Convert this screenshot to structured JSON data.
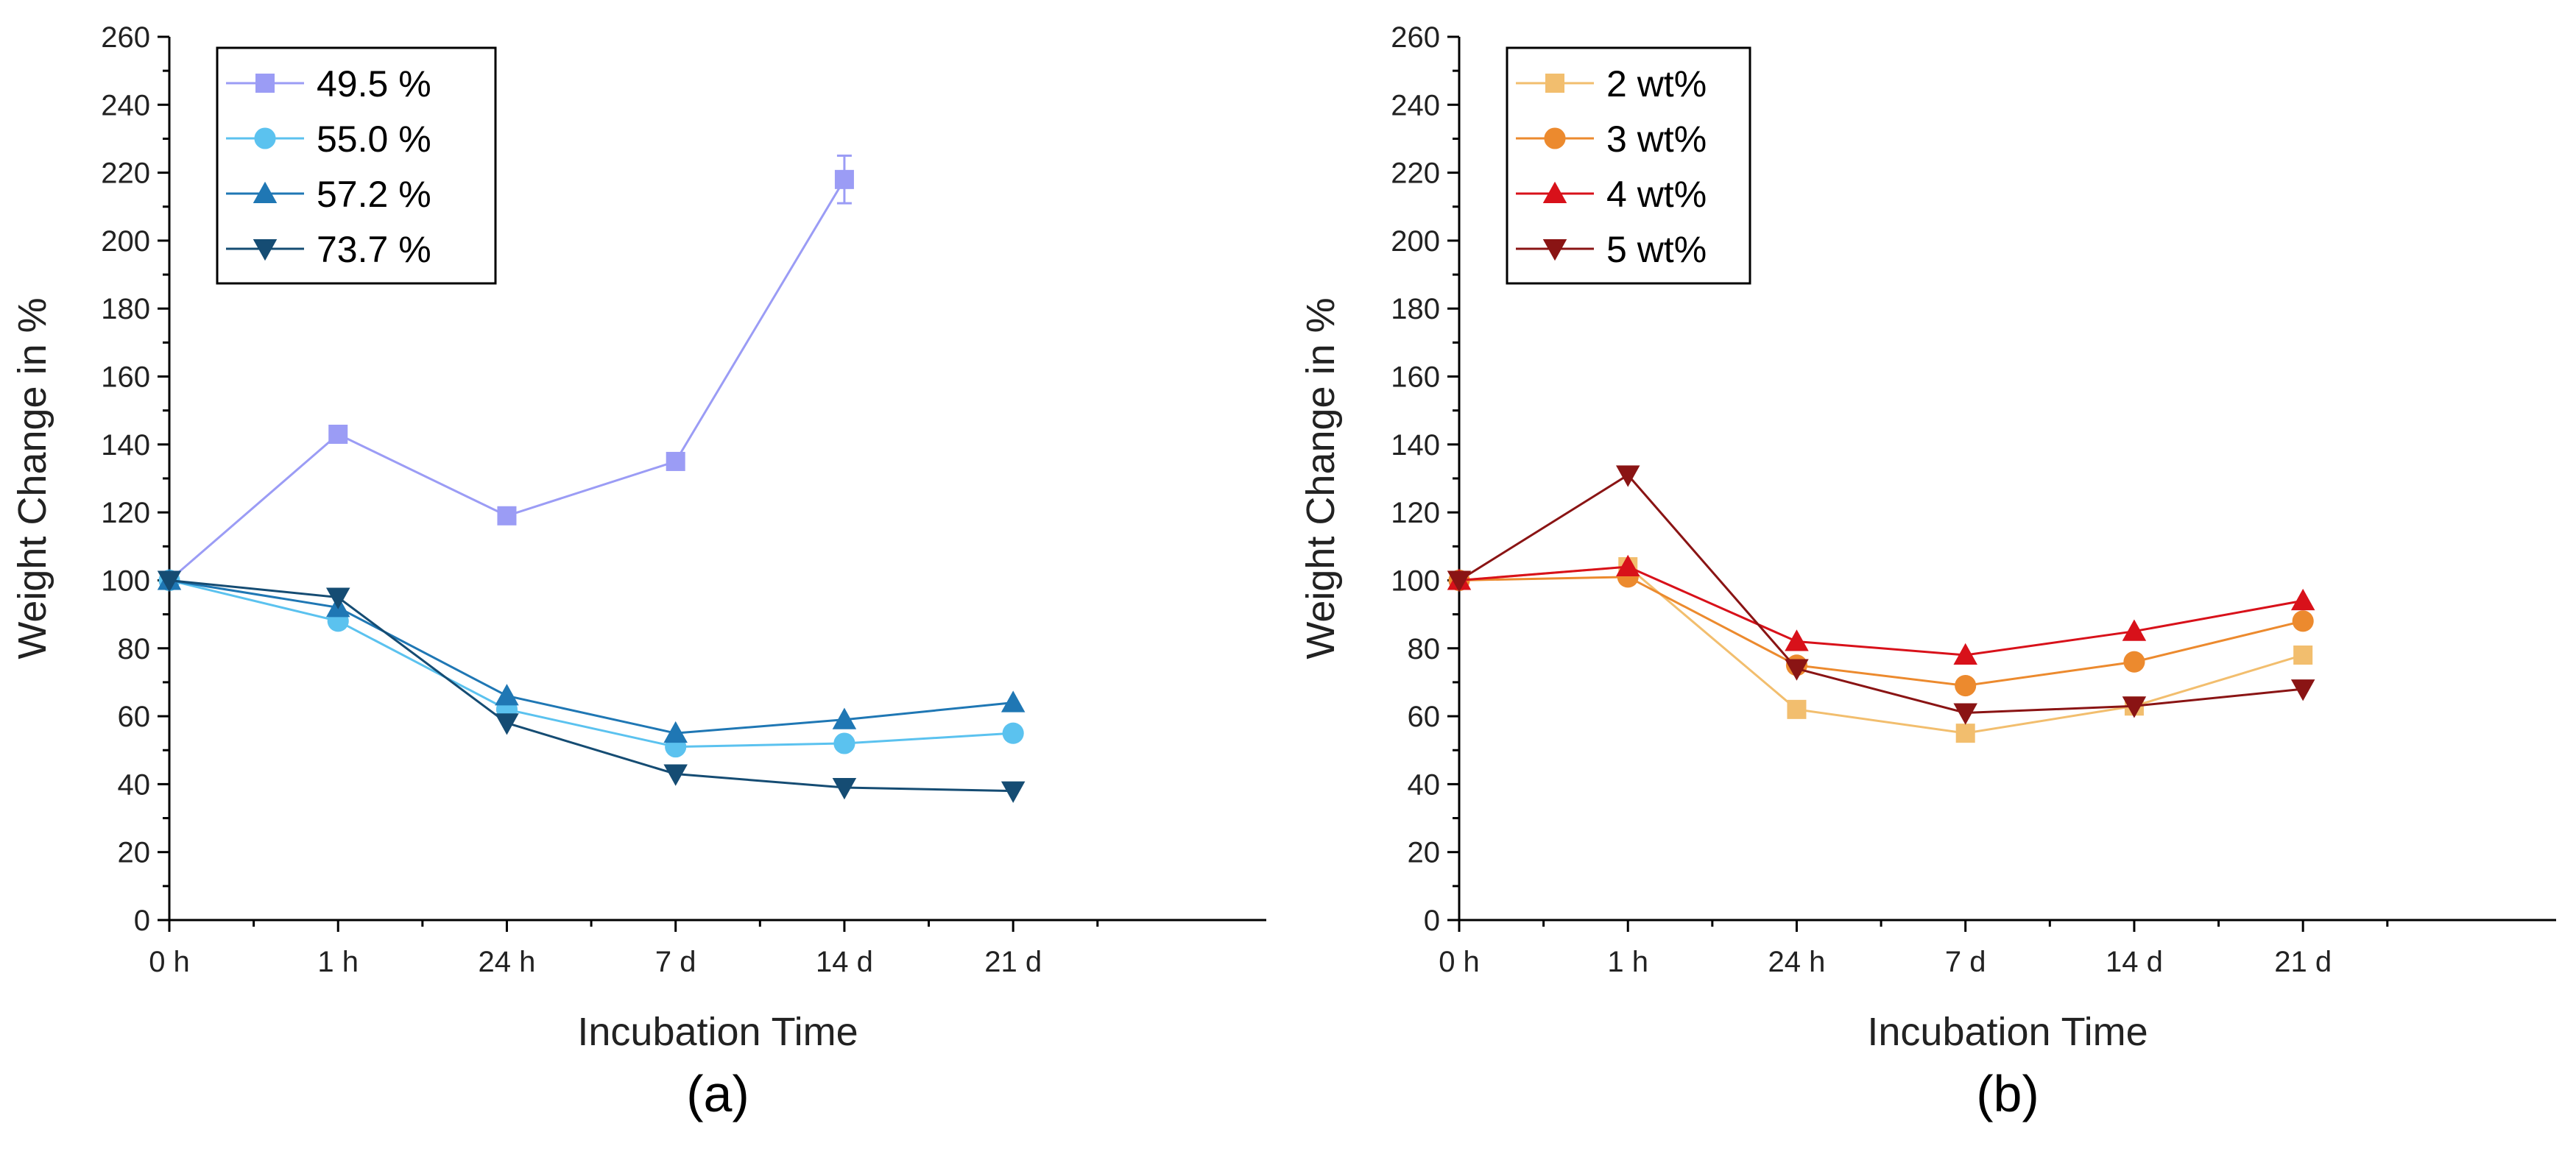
{
  "chart_data": [
    {
      "type": "line",
      "panel_label": "(a)",
      "xlabel": "Incubation Time",
      "ylabel": "Weight Change in %",
      "categories": [
        "0 h",
        "1 h",
        "24 h",
        "7 d",
        "14 d",
        "21 d"
      ],
      "ylim": [
        0,
        260
      ],
      "yticks": [
        0,
        20,
        40,
        60,
        80,
        100,
        120,
        140,
        160,
        180,
        200,
        220,
        240,
        260
      ],
      "legend_position": "top-left",
      "series": [
        {
          "name": "49.5 %",
          "marker": "square",
          "color": "#9b9cf5",
          "values": [
            100,
            143,
            119,
            135,
            218,
            null
          ],
          "error": [
            0,
            0,
            0,
            0,
            7,
            0
          ]
        },
        {
          "name": "55.0 %",
          "marker": "circle",
          "color": "#5bc2ef",
          "values": [
            100,
            88,
            62,
            51,
            52,
            55
          ]
        },
        {
          "name": "57.2 %",
          "marker": "triangle-up",
          "color": "#1f77b4",
          "values": [
            100,
            92,
            66,
            55,
            59,
            64
          ]
        },
        {
          "name": "73.7 %",
          "marker": "triangle-down",
          "color": "#154c73",
          "values": [
            100,
            95,
            58,
            43,
            39,
            38
          ]
        }
      ]
    },
    {
      "type": "line",
      "panel_label": "(b)",
      "xlabel": "Incubation Time",
      "ylabel": "Weight Change in %",
      "categories": [
        "0 h",
        "1 h",
        "24 h",
        "7 d",
        "14 d",
        "21 d"
      ],
      "ylim": [
        0,
        260
      ],
      "yticks": [
        0,
        20,
        40,
        60,
        80,
        100,
        120,
        140,
        160,
        180,
        200,
        220,
        240,
        260
      ],
      "legend_position": "top-left",
      "series": [
        {
          "name": "2 wt%",
          "marker": "square",
          "color": "#f2be6e",
          "values": [
            100,
            104,
            62,
            55,
            63,
            78
          ]
        },
        {
          "name": "3 wt%",
          "marker": "circle",
          "color": "#ec8a2e",
          "values": [
            100,
            101,
            75,
            69,
            76,
            88
          ]
        },
        {
          "name": "4 wt%",
          "marker": "triangle-up",
          "color": "#d8111a",
          "values": [
            100,
            104,
            82,
            78,
            85,
            94
          ]
        },
        {
          "name": "5 wt%",
          "marker": "triangle-down",
          "color": "#8a1414",
          "values": [
            100,
            131,
            74,
            61,
            63,
            68
          ]
        }
      ]
    }
  ]
}
